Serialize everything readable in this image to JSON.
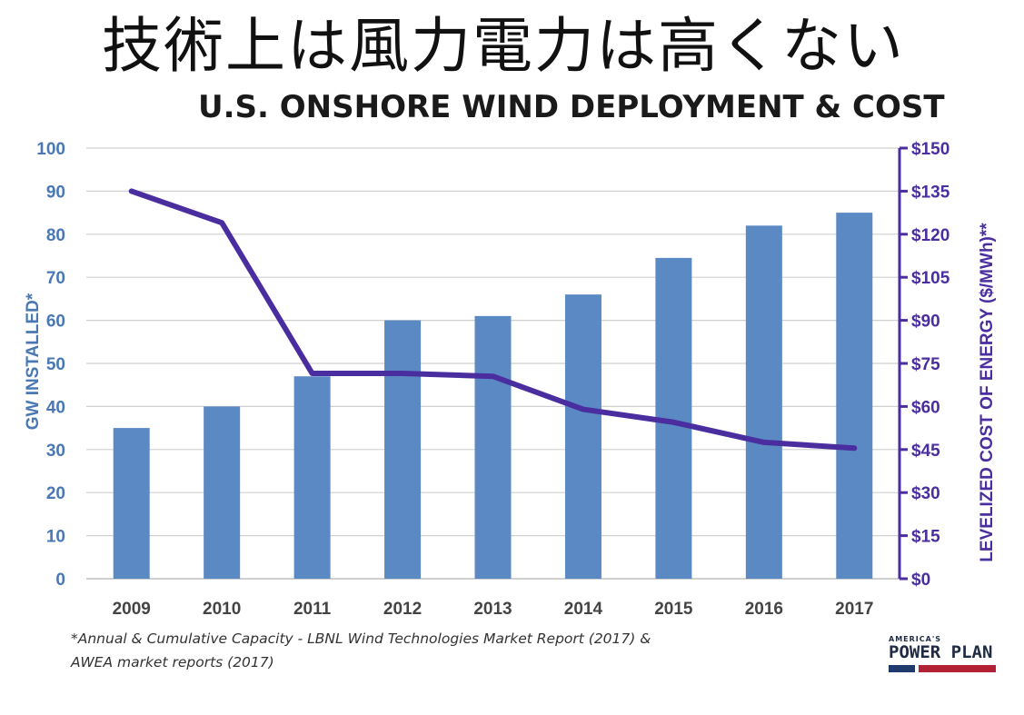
{
  "page_title": "技術上は風力電力は高くない",
  "footnote_lines": [
    "*Annual & Cumulative Capacity - LBNL Wind Technologies Market Report (2017) &",
    "AWEA market reports (2017)"
  ],
  "logo": {
    "top": "AMERICA'S",
    "main": "POWER PLAN"
  },
  "chart_data": {
    "type": "bar",
    "title": "U.S. ONSHORE WIND DEPLOYMENT & COST",
    "categories": [
      "2009",
      "2010",
      "2011",
      "2012",
      "2013",
      "2014",
      "2015",
      "2016",
      "2017"
    ],
    "series": [
      {
        "name": "GW INSTALLED*",
        "type": "bar",
        "axis": "left",
        "color": "#5b89c4",
        "values": [
          35,
          40,
          47,
          60,
          61,
          66,
          74.5,
          82,
          85
        ]
      },
      {
        "name": "LEVELIZED COST OF ENERGY ($/MWh)**",
        "type": "line",
        "axis": "right",
        "color": "#4a2d9e",
        "values": [
          135,
          124,
          71.5,
          71.5,
          70.5,
          59,
          54.5,
          47.5,
          45.5
        ]
      }
    ],
    "ylabel": "GW INSTALLED*",
    "ylim": [
      0,
      100
    ],
    "yticks": [
      "0",
      "10",
      "20",
      "30",
      "40",
      "50",
      "60",
      "70",
      "80",
      "90",
      "100"
    ],
    "y2label": "LEVELIZED COST OF ENERGY ($/MWh)**",
    "y2lim": [
      0,
      150
    ],
    "y2ticks": [
      "$0",
      "$15",
      "$30",
      "$45",
      "$60",
      "$75",
      "$90",
      "$105",
      "$120",
      "$135",
      "$150"
    ],
    "grid": true,
    "colors": {
      "left_axis": "#4a78b5",
      "right_axis": "#4a2d9e",
      "grid": "#d0d0d0"
    }
  }
}
